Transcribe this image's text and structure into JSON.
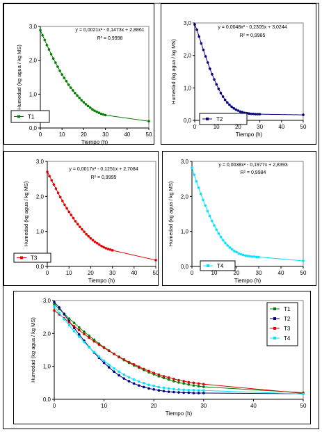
{
  "chart_data": [
    {
      "id": "T1",
      "type": "scatter",
      "xlabel": "Tiempo (h)",
      "ylabel": "Humedad (kg agua / kg MS)",
      "xlim": [
        0,
        50
      ],
      "ylim": [
        0,
        3
      ],
      "xticks": [
        0,
        10,
        20,
        30,
        40,
        50
      ],
      "yticks": [
        "0,0",
        "1,0",
        "2,0",
        "3,0"
      ],
      "equation": "y = 0,0021x² - 0,1473x + 2,8861",
      "r2": "R² = 0,9998",
      "legend": [
        "T1"
      ],
      "legend_position": "bottom-left",
      "series": [
        {
          "name": "T1",
          "color": "#008000",
          "x": [
            0,
            1,
            2,
            3,
            4,
            5,
            6,
            7,
            8,
            9,
            10,
            11,
            12,
            13,
            14,
            15,
            16,
            17,
            18,
            19,
            20,
            21,
            22,
            23,
            24,
            25,
            26,
            27,
            28,
            29,
            30,
            50
          ],
          "y": [
            2.89,
            2.74,
            2.6,
            2.45,
            2.32,
            2.18,
            2.05,
            1.93,
            1.81,
            1.69,
            1.58,
            1.48,
            1.38,
            1.28,
            1.19,
            1.11,
            1.03,
            0.96,
            0.89,
            0.82,
            0.76,
            0.7,
            0.65,
            0.6,
            0.55,
            0.51,
            0.48,
            0.45,
            0.42,
            0.4,
            0.38,
            0.2
          ]
        }
      ]
    },
    {
      "id": "T2",
      "type": "scatter",
      "xlabel": "Tiempo (h)",
      "ylabel": "Humedad (kg agua / kg MS)",
      "xlim": [
        0,
        50
      ],
      "ylim": [
        0,
        3
      ],
      "xticks": [
        0,
        10,
        20,
        30,
        40,
        50
      ],
      "yticks": [
        "0,0",
        "1,0",
        "2,0",
        "3,0"
      ],
      "equation": "y = 0,0048x² - 0,2305x + 3,0244",
      "r2": "R² = 0,9985",
      "legend": [
        "T2"
      ],
      "legend_position": "bottom-left",
      "series": [
        {
          "name": "T2",
          "color": "#000080",
          "x": [
            0,
            1,
            2,
            3,
            4,
            5,
            6,
            7,
            8,
            9,
            10,
            11,
            12,
            13,
            14,
            15,
            16,
            17,
            18,
            19,
            20,
            21,
            22,
            23,
            24,
            25,
            26,
            27,
            28,
            29,
            30,
            50
          ],
          "y": [
            2.95,
            2.79,
            2.58,
            2.37,
            2.17,
            1.97,
            1.78,
            1.59,
            1.42,
            1.26,
            1.11,
            0.97,
            0.84,
            0.73,
            0.63,
            0.55,
            0.48,
            0.42,
            0.37,
            0.33,
            0.3,
            0.27,
            0.25,
            0.23,
            0.22,
            0.21,
            0.2,
            0.2,
            0.19,
            0.19,
            0.19,
            0.17
          ]
        }
      ]
    },
    {
      "id": "T3",
      "type": "scatter",
      "xlabel": "Tiempo (h)",
      "ylabel": "Humedad (kg agua / kg MS)",
      "xlim": [
        0,
        50
      ],
      "ylim": [
        0,
        3
      ],
      "xticks": [
        0,
        10,
        20,
        30,
        40,
        50
      ],
      "yticks": [
        "0,0",
        "1,0",
        "2,0",
        "3,0"
      ],
      "equation": "y = 0,0017x² - 0,1251x + 2,7084",
      "r2": "R² = 0,9995",
      "legend": [
        "T3"
      ],
      "legend_position": "bottom-left",
      "series": [
        {
          "name": "T3",
          "color": "#e00000",
          "x": [
            0,
            1,
            2,
            3,
            4,
            5,
            6,
            7,
            8,
            9,
            10,
            11,
            12,
            13,
            14,
            15,
            16,
            17,
            18,
            19,
            20,
            21,
            22,
            23,
            24,
            25,
            26,
            27,
            28,
            29,
            30,
            50
          ],
          "y": [
            2.7,
            2.58,
            2.46,
            2.34,
            2.22,
            2.1,
            1.98,
            1.87,
            1.76,
            1.66,
            1.56,
            1.47,
            1.38,
            1.29,
            1.21,
            1.13,
            1.06,
            0.99,
            0.92,
            0.86,
            0.8,
            0.75,
            0.7,
            0.66,
            0.62,
            0.58,
            0.55,
            0.52,
            0.5,
            0.48,
            0.46,
            0.18
          ]
        }
      ]
    },
    {
      "id": "T4",
      "type": "scatter",
      "xlabel": "Tiempo (h)",
      "ylabel": "Humedad (kg agua / kg MS)",
      "xlim": [
        0,
        50
      ],
      "ylim": [
        0,
        3
      ],
      "xticks": [
        0,
        10,
        20,
        30,
        40,
        50
      ],
      "yticks": [
        "0,0",
        "1,0",
        "2,0",
        "3,0"
      ],
      "equation": "y = 0,0038x² - 0,1977x + 2,8393",
      "r2": "R² = 0,9984",
      "legend": [
        "T4"
      ],
      "legend_position": "bottom-left",
      "series": [
        {
          "name": "T4",
          "color": "#00e5ff",
          "x": [
            0,
            1,
            2,
            3,
            4,
            5,
            6,
            7,
            8,
            9,
            10,
            11,
            12,
            13,
            14,
            15,
            16,
            17,
            18,
            19,
            20,
            21,
            22,
            23,
            24,
            25,
            26,
            27,
            28,
            29,
            30,
            50
          ],
          "y": [
            2.82,
            2.62,
            2.43,
            2.25,
            2.07,
            1.9,
            1.74,
            1.58,
            1.44,
            1.3,
            1.17,
            1.05,
            0.94,
            0.84,
            0.75,
            0.67,
            0.6,
            0.54,
            0.49,
            0.44,
            0.41,
            0.37,
            0.35,
            0.33,
            0.31,
            0.3,
            0.29,
            0.28,
            0.28,
            0.27,
            0.27,
            0.16
          ]
        }
      ]
    },
    {
      "id": "combined",
      "type": "scatter",
      "xlabel": "Tiempo (h)",
      "ylabel": "Humedad (kg agua / kg MS)",
      "xlim": [
        0,
        50
      ],
      "ylim": [
        0,
        3
      ],
      "xticks": [
        0,
        10,
        20,
        30,
        40,
        50
      ],
      "yticks": [
        "0,0",
        "1,0",
        "2,0",
        "3,0"
      ],
      "legend": [
        "T1",
        "T2",
        "T3",
        "T4"
      ],
      "legend_position": "top-right",
      "series": [
        {
          "name": "T1",
          "color": "#008000",
          "x": [
            0,
            1,
            2,
            3,
            4,
            5,
            6,
            7,
            8,
            9,
            10,
            11,
            12,
            13,
            14,
            15,
            16,
            17,
            18,
            19,
            20,
            21,
            22,
            23,
            24,
            25,
            26,
            27,
            28,
            29,
            30,
            50
          ],
          "y": [
            2.89,
            2.74,
            2.6,
            2.45,
            2.32,
            2.18,
            2.05,
            1.93,
            1.81,
            1.69,
            1.58,
            1.48,
            1.38,
            1.28,
            1.19,
            1.11,
            1.03,
            0.96,
            0.89,
            0.82,
            0.76,
            0.7,
            0.65,
            0.6,
            0.55,
            0.51,
            0.48,
            0.45,
            0.42,
            0.4,
            0.38,
            0.2
          ]
        },
        {
          "name": "T2",
          "color": "#000080",
          "x": [
            0,
            1,
            2,
            3,
            4,
            5,
            6,
            7,
            8,
            9,
            10,
            11,
            12,
            13,
            14,
            15,
            16,
            17,
            18,
            19,
            20,
            21,
            22,
            23,
            24,
            25,
            26,
            27,
            28,
            29,
            30,
            50
          ],
          "y": [
            2.95,
            2.79,
            2.58,
            2.37,
            2.17,
            1.97,
            1.78,
            1.59,
            1.42,
            1.26,
            1.11,
            0.97,
            0.84,
            0.73,
            0.63,
            0.55,
            0.48,
            0.42,
            0.37,
            0.33,
            0.3,
            0.27,
            0.25,
            0.23,
            0.22,
            0.21,
            0.2,
            0.2,
            0.19,
            0.19,
            0.19,
            0.17
          ]
        },
        {
          "name": "T3",
          "color": "#e00000",
          "x": [
            0,
            1,
            2,
            3,
            4,
            5,
            6,
            7,
            8,
            9,
            10,
            11,
            12,
            13,
            14,
            15,
            16,
            17,
            18,
            19,
            20,
            21,
            22,
            23,
            24,
            25,
            26,
            27,
            28,
            29,
            30,
            50
          ],
          "y": [
            2.7,
            2.58,
            2.46,
            2.34,
            2.22,
            2.1,
            1.98,
            1.87,
            1.76,
            1.66,
            1.56,
            1.47,
            1.38,
            1.29,
            1.21,
            1.13,
            1.06,
            0.99,
            0.92,
            0.86,
            0.8,
            0.75,
            0.7,
            0.66,
            0.62,
            0.58,
            0.55,
            0.52,
            0.5,
            0.48,
            0.46,
            0.18
          ]
        },
        {
          "name": "T4",
          "color": "#00e5ff",
          "x": [
            0,
            1,
            2,
            3,
            4,
            5,
            6,
            7,
            8,
            9,
            10,
            11,
            12,
            13,
            14,
            15,
            16,
            17,
            18,
            19,
            20,
            21,
            22,
            23,
            24,
            25,
            26,
            27,
            28,
            29,
            30,
            50
          ],
          "y": [
            2.82,
            2.62,
            2.43,
            2.25,
            2.07,
            1.9,
            1.74,
            1.58,
            1.44,
            1.3,
            1.17,
            1.05,
            0.94,
            0.84,
            0.75,
            0.67,
            0.6,
            0.54,
            0.49,
            0.44,
            0.41,
            0.37,
            0.35,
            0.33,
            0.31,
            0.3,
            0.29,
            0.28,
            0.28,
            0.27,
            0.27,
            0.16
          ]
        }
      ]
    }
  ]
}
